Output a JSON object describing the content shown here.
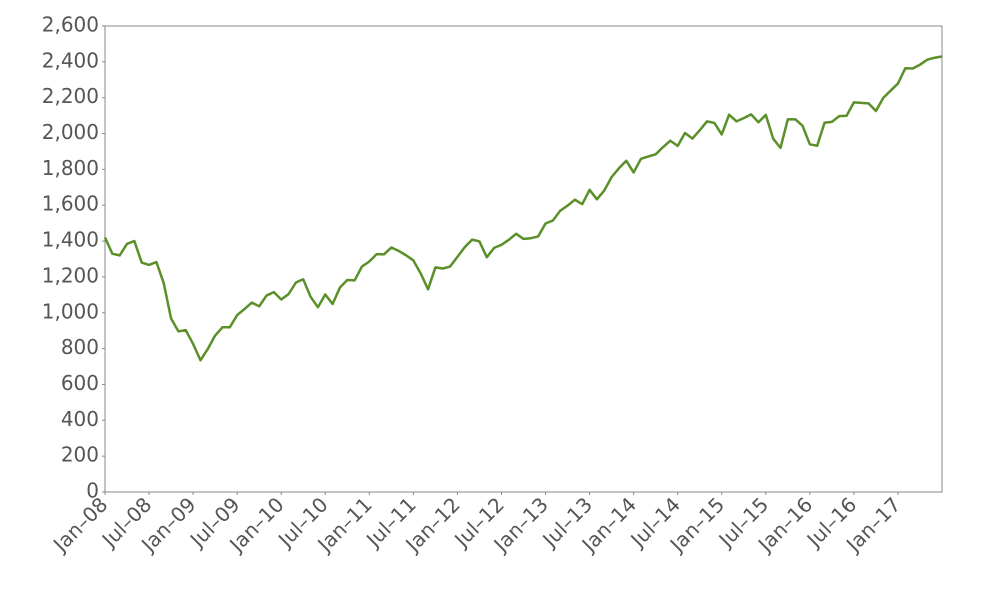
{
  "chart_data": {
    "type": "line",
    "x": [
      "2008-01",
      "2008-02",
      "2008-03",
      "2008-04",
      "2008-05",
      "2008-06",
      "2008-07",
      "2008-08",
      "2008-09",
      "2008-10",
      "2008-11",
      "2008-12",
      "2009-01",
      "2009-02",
      "2009-03",
      "2009-04",
      "2009-05",
      "2009-06",
      "2009-07",
      "2009-08",
      "2009-09",
      "2009-10",
      "2009-11",
      "2009-12",
      "2010-01",
      "2010-02",
      "2010-03",
      "2010-04",
      "2010-05",
      "2010-06",
      "2010-07",
      "2010-08",
      "2010-09",
      "2010-10",
      "2010-11",
      "2010-12",
      "2011-01",
      "2011-02",
      "2011-03",
      "2011-04",
      "2011-05",
      "2011-06",
      "2011-07",
      "2011-08",
      "2011-09",
      "2011-10",
      "2011-11",
      "2011-12",
      "2012-01",
      "2012-02",
      "2012-03",
      "2012-04",
      "2012-05",
      "2012-06",
      "2012-07",
      "2012-08",
      "2012-09",
      "2012-10",
      "2012-11",
      "2012-12",
      "2013-01",
      "2013-02",
      "2013-03",
      "2013-04",
      "2013-05",
      "2013-06",
      "2013-07",
      "2013-08",
      "2013-09",
      "2013-10",
      "2013-11",
      "2013-12",
      "2014-01",
      "2014-02",
      "2014-03",
      "2014-04",
      "2014-05",
      "2014-06",
      "2014-07",
      "2014-08",
      "2014-09",
      "2014-10",
      "2014-11",
      "2014-12",
      "2015-01",
      "2015-02",
      "2015-03",
      "2015-04",
      "2015-05",
      "2015-06",
      "2015-07",
      "2015-08",
      "2015-09",
      "2015-10",
      "2015-11",
      "2015-12",
      "2016-01",
      "2016-02",
      "2016-03",
      "2016-04",
      "2016-05",
      "2016-06",
      "2016-07",
      "2016-08",
      "2016-09",
      "2016-10",
      "2016-11",
      "2016-12",
      "2017-01",
      "2017-02",
      "2017-03",
      "2017-04",
      "2017-05",
      "2017-06",
      "2017-07"
    ],
    "series": [
      {
        "color": "#5b8f29",
        "values": [
          1420,
          1330,
          1320,
          1385,
          1400,
          1280,
          1267,
          1283,
          1165,
          968,
          896,
          903,
          826,
          735,
          798,
          873,
          919,
          919,
          987,
          1021,
          1057,
          1036,
          1096,
          1115,
          1074,
          1104,
          1169,
          1187,
          1089,
          1031,
          1102,
          1049,
          1141,
          1183,
          1181,
          1258,
          1286,
          1327,
          1326,
          1364,
          1345,
          1321,
          1292,
          1219,
          1131,
          1253,
          1247,
          1258,
          1312,
          1366,
          1408,
          1398,
          1310,
          1362,
          1379,
          1407,
          1441,
          1412,
          1416,
          1426,
          1498,
          1515,
          1569,
          1598,
          1631,
          1606,
          1686,
          1633,
          1682,
          1757,
          1806,
          1848,
          1783,
          1859,
          1872,
          1884,
          1924,
          1960,
          1931,
          2003,
          1972,
          2018,
          2068,
          2059,
          1995,
          2105,
          2068,
          2086,
          2107,
          2063,
          2104,
          1972,
          1920,
          2079,
          2080,
          2044,
          1940,
          1932,
          2060,
          2065,
          2097,
          2099,
          2174,
          2171,
          2168,
          2126,
          2199,
          2239,
          2279,
          2364,
          2363,
          2384,
          2412,
          2423,
          2430
        ]
      }
    ],
    "xlim": [
      "2008-01",
      "2017-07"
    ],
    "xticks": [
      {
        "value": "2008-01",
        "label": "Jan–08"
      },
      {
        "value": "2008-07",
        "label": "Jul–08"
      },
      {
        "value": "2009-01",
        "label": "Jan–09"
      },
      {
        "value": "2009-07",
        "label": "Jul–09"
      },
      {
        "value": "2010-01",
        "label": "Jan–10"
      },
      {
        "value": "2010-07",
        "label": "Jul–10"
      },
      {
        "value": "2011-01",
        "label": "Jan–11"
      },
      {
        "value": "2011-07",
        "label": "Jul–11"
      },
      {
        "value": "2012-01",
        "label": "Jan–12"
      },
      {
        "value": "2012-07",
        "label": "Jul–12"
      },
      {
        "value": "2013-01",
        "label": "Jan–13"
      },
      {
        "value": "2013-07",
        "label": "Jul–13"
      },
      {
        "value": "2014-01",
        "label": "Jan–14"
      },
      {
        "value": "2014-07",
        "label": "Jul–14"
      },
      {
        "value": "2015-01",
        "label": "Jan–15"
      },
      {
        "value": "2015-07",
        "label": "Jul–15"
      },
      {
        "value": "2016-01",
        "label": "Jan–16"
      },
      {
        "value": "2016-07",
        "label": "Jul–16"
      },
      {
        "value": "2017-01",
        "label": "Jan–17"
      }
    ],
    "ylim": [
      0,
      2600
    ],
    "yticks": [
      0,
      200,
      400,
      600,
      800,
      {
        "value": 1000,
        "label": "1,000"
      },
      {
        "value": 1200,
        "label": "1,200"
      },
      {
        "value": 1400,
        "label": "1,400"
      },
      {
        "value": 1600,
        "label": "1,600"
      },
      {
        "value": 1800,
        "label": "1,800"
      },
      {
        "value": 2000,
        "label": "2,000"
      },
      {
        "value": 2200,
        "label": "2,200"
      },
      {
        "value": 2400,
        "label": "2,400"
      },
      {
        "value": 2600,
        "label": "2,600"
      }
    ]
  }
}
